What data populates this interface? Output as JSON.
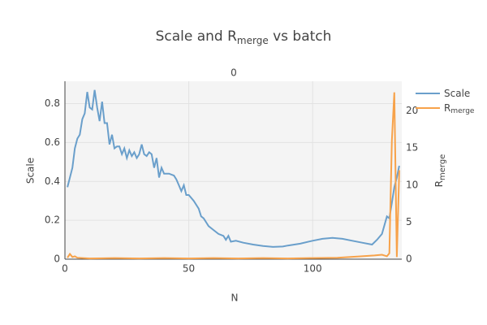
{
  "chart_data": {
    "type": "line",
    "title": {
      "main": "Scale and R",
      "sub": "merge",
      "rest": " vs batch"
    },
    "subplot_title": "0",
    "x_label": "N",
    "y_label": "Scale",
    "y2_label": {
      "main": "R",
      "sub": "merge"
    },
    "xlim": [
      0,
      136
    ],
    "xticks": [
      0,
      50,
      100
    ],
    "ylim": [
      0,
      0.915
    ],
    "yticks": [
      0,
      0.2,
      0.4,
      0.6,
      0.8
    ],
    "y2lim": [
      0,
      24
    ],
    "y2ticks": [
      0,
      5,
      10,
      15,
      20
    ],
    "grid": true,
    "series": [
      {
        "name": "Scale",
        "color": "#6a9fcb",
        "x": [
          1,
          3,
          4,
          5,
          6,
          7,
          8,
          9,
          10,
          11,
          12,
          13,
          14,
          15,
          16,
          17,
          18,
          19,
          20,
          21,
          22,
          23,
          24,
          25,
          26,
          27,
          28,
          29,
          30,
          31,
          32,
          33,
          34,
          35,
          36,
          37,
          38,
          39,
          40,
          42,
          44,
          45,
          46,
          47,
          48,
          49,
          50,
          52,
          54,
          55,
          56,
          58,
          60,
          62,
          64,
          65,
          66,
          67,
          69,
          72,
          76,
          80,
          84,
          88,
          90,
          95,
          100,
          104,
          108,
          112,
          116,
          120,
          124,
          126,
          128,
          130,
          131,
          132,
          133,
          134,
          135
        ],
        "values": [
          0.37,
          0.47,
          0.57,
          0.62,
          0.64,
          0.72,
          0.75,
          0.86,
          0.78,
          0.77,
          0.87,
          0.78,
          0.71,
          0.81,
          0.7,
          0.7,
          0.59,
          0.64,
          0.57,
          0.58,
          0.58,
          0.54,
          0.57,
          0.52,
          0.56,
          0.53,
          0.55,
          0.52,
          0.54,
          0.59,
          0.54,
          0.53,
          0.55,
          0.54,
          0.47,
          0.52,
          0.42,
          0.47,
          0.44,
          0.44,
          0.43,
          0.41,
          0.38,
          0.35,
          0.38,
          0.33,
          0.33,
          0.3,
          0.26,
          0.22,
          0.21,
          0.17,
          0.15,
          0.13,
          0.12,
          0.1,
          0.12,
          0.09,
          0.095,
          0.085,
          0.075,
          0.068,
          0.063,
          0.065,
          0.07,
          0.08,
          0.095,
          0.105,
          0.11,
          0.105,
          0.095,
          0.085,
          0.075,
          0.1,
          0.13,
          0.22,
          0.21,
          0.29,
          0.37,
          0.42,
          0.48
        ]
      },
      {
        "name": "R",
        "name_sub": "merge",
        "color": "#f7a24a",
        "axis": "y2",
        "x": [
          1,
          2,
          3,
          4,
          5,
          10,
          20,
          30,
          40,
          50,
          60,
          70,
          80,
          90,
          100,
          110,
          120,
          125,
          128,
          130,
          131,
          132,
          133,
          134,
          135
        ],
        "values": [
          0.2,
          0.7,
          0.3,
          0.4,
          0.2,
          0.1,
          0.15,
          0.1,
          0.15,
          0.1,
          0.15,
          0.1,
          0.15,
          0.1,
          0.15,
          0.2,
          0.4,
          0.5,
          0.6,
          0.4,
          0.8,
          16,
          22.5,
          0.3,
          12
        ]
      }
    ]
  }
}
